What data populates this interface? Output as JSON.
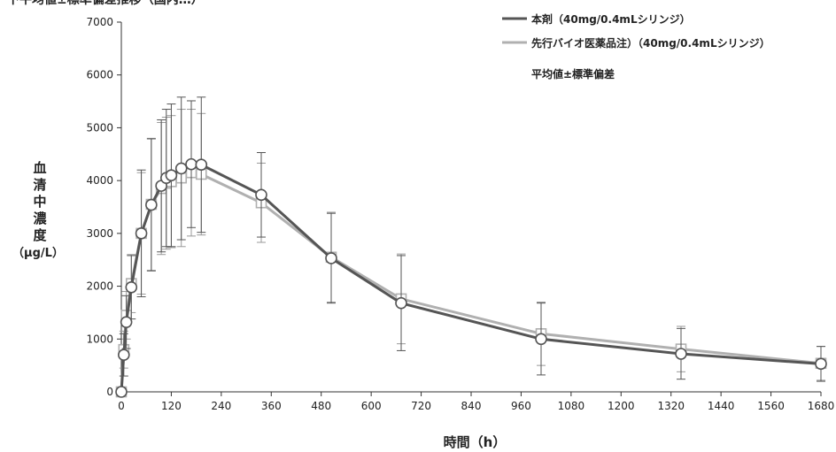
{
  "chart_data": {
    "type": "line",
    "top_caption_fragment": "下平均値±標準偏差推移（国内…）",
    "xlabel": "時間（h）",
    "ylabel_lines": [
      "血",
      "清",
      "中",
      "濃",
      "度",
      "（μg/L）"
    ],
    "xlim": [
      0,
      1680
    ],
    "ylim": [
      0,
      7000
    ],
    "x_ticks": [
      "0",
      "120",
      "240",
      "360",
      "480",
      "600",
      "720",
      "840",
      "960",
      "1080",
      "1200",
      "1320",
      "1440",
      "1560",
      "1680"
    ],
    "y_ticks": [
      "0",
      "1000",
      "2000",
      "3000",
      "4000",
      "5000",
      "6000",
      "7000"
    ],
    "legend_position": "top-right",
    "legend_note": "平均値±標準偏差",
    "series": [
      {
        "name": "本剤（40mg/0.4mLシリンジ）",
        "color": "#555555",
        "marker": "circle",
        "x": [
          0,
          6,
          12,
          24,
          48,
          72,
          96,
          108,
          120,
          144,
          168,
          192,
          336,
          504,
          672,
          1008,
          1344,
          1680
        ],
        "y": [
          0,
          700,
          1320,
          1980,
          3000,
          3540,
          3900,
          4050,
          4100,
          4230,
          4310,
          4300,
          3730,
          2530,
          1680,
          1000,
          720,
          530
        ],
        "sd": [
          0,
          400,
          500,
          600,
          1200,
          1250,
          1250,
          1300,
          1350,
          1350,
          1200,
          1280,
          800,
          850,
          900,
          680,
          480,
          330
        ]
      },
      {
        "name": "先行バイオ医薬品注）（40mg/0.4mLシリンジ）",
        "color": "#b0b0b0",
        "marker": "square",
        "x": [
          0,
          6,
          12,
          24,
          48,
          72,
          96,
          108,
          120,
          144,
          168,
          192,
          336,
          504,
          672,
          1008,
          1344,
          1680
        ],
        "y": [
          0,
          800,
          1450,
          2050,
          3000,
          3550,
          3850,
          3950,
          3980,
          4050,
          4150,
          4120,
          3580,
          2550,
          1760,
          1100,
          810,
          540
        ],
        "sd": [
          0,
          350,
          450,
          550,
          1150,
          1250,
          1250,
          1250,
          1250,
          1300,
          1200,
          1150,
          750,
          850,
          850,
          600,
          430,
          320
        ]
      }
    ]
  }
}
